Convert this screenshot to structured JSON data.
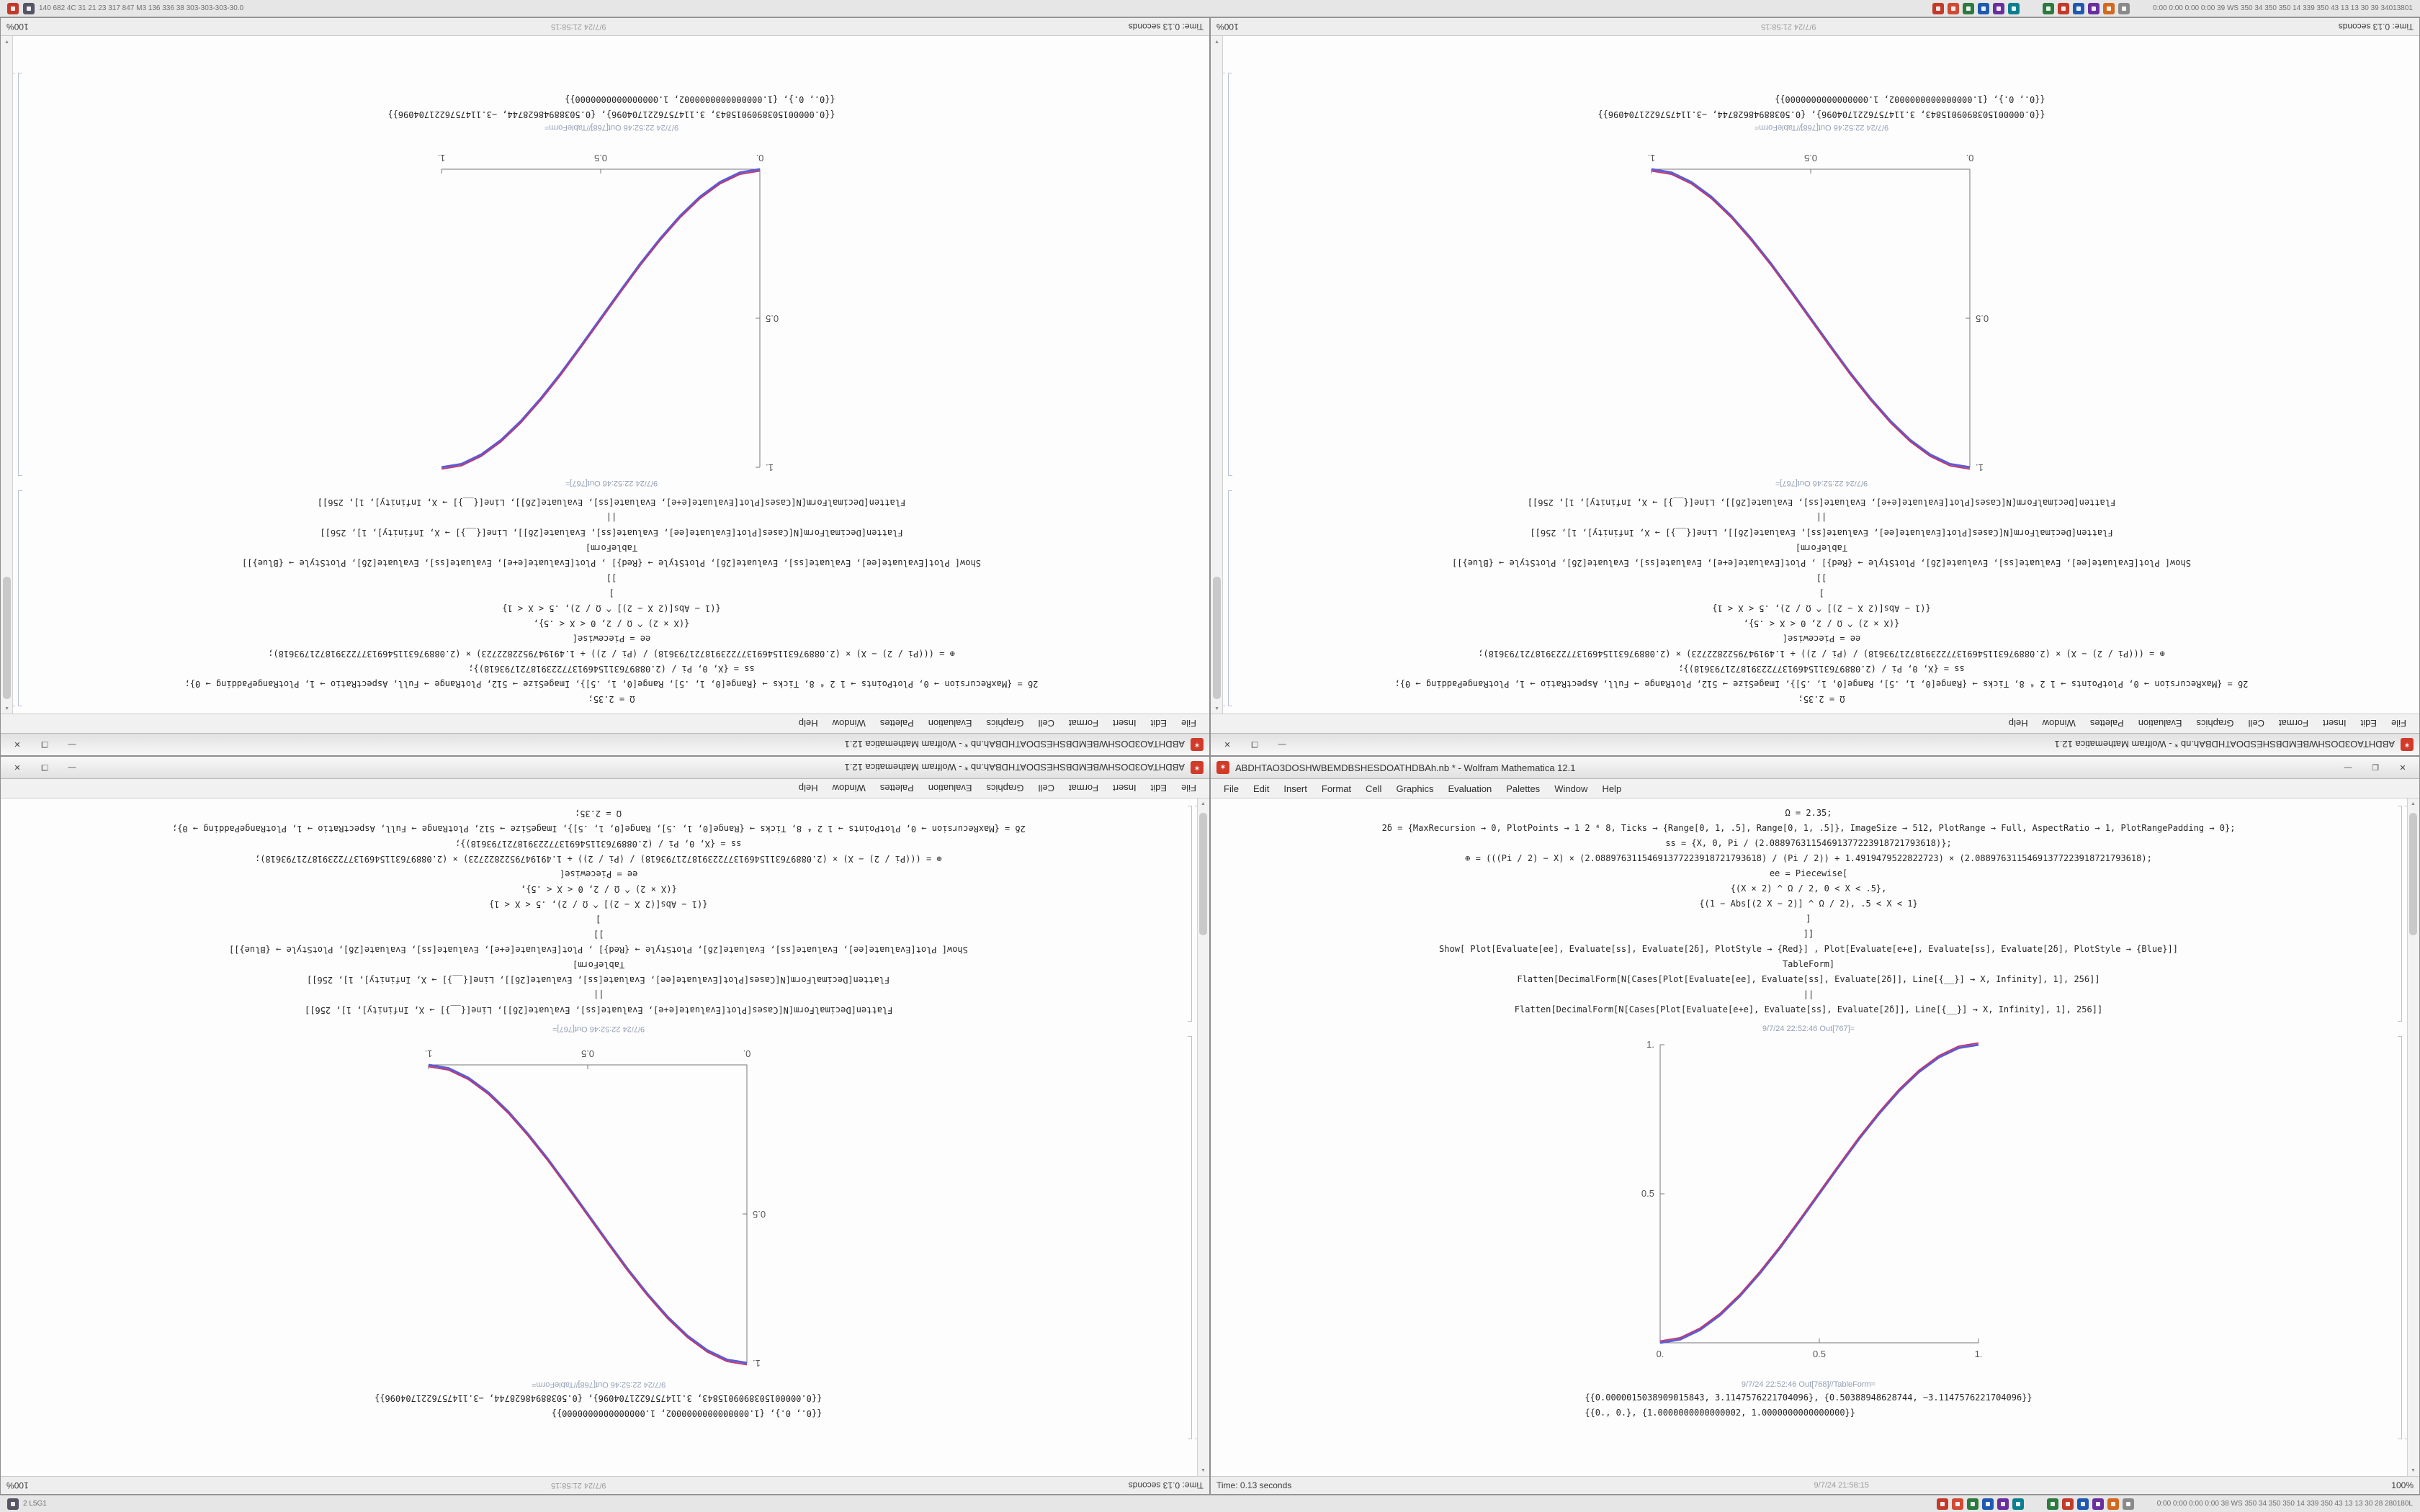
{
  "desktop": {
    "top_taskbar": {
      "left_icons": [
        {
          "name": "app-icon-red",
          "color": "#c23b2a"
        },
        {
          "name": "app-icon-dark",
          "color": "#555566"
        }
      ],
      "left_text": "140 682 4C 31 21 23 317 847 M3 136 336 38 303-303-303-30.0",
      "right_groups": [
        [
          "#c23b2a",
          "#d04a35",
          "#2c7a3f",
          "#2059b0",
          "#6a2f9e",
          "#0c7f8f"
        ],
        [
          "#2c7a3f",
          "#c23b2a",
          "#2059b0",
          "#6a2f9e",
          "#d2691e",
          "#8a8a8a"
        ]
      ],
      "right_text": "0:00 0:00 0:00 0:00 39 WS 350 34 350 350 14 339 350 43 13 13 30 39 34013801"
    },
    "bottom_taskbar": {
      "left_icons": [
        {
          "name": "app-icon-dark",
          "color": "#555566"
        }
      ],
      "left_text": "2 L5G1",
      "right_groups": [
        [
          "#c23b2a",
          "#d04a35",
          "#2c7a3f",
          "#2059b0",
          "#6a2f9e",
          "#0c7f8f"
        ],
        [
          "#2c7a3f",
          "#c23b2a",
          "#2059b0",
          "#6a2f9e",
          "#d2691e",
          "#8a8a8a"
        ]
      ],
      "right_text": "0:00 0:00 0:00 0:00 38 WS 350 34 350 350 14 339 350 43 13 13 30 28 280180L"
    }
  },
  "window_chrome": {
    "minimize_glyph": "—",
    "maximize_glyph": "❐",
    "close_glyph": "✕",
    "menu_items": [
      "File",
      "Edit",
      "Insert",
      "Format",
      "Cell",
      "Graphics",
      "Evaluation",
      "Palettes",
      "Window",
      "Help"
    ]
  },
  "notebook": {
    "input_lines": [
      "Ω = 2.35;",
      "2δ = {MaxRecursion → 0, PlotPoints → 1 2 ⁴ 8, Ticks → {Range[0, 1, .5], Range[0, 1, .5]}, ImageSize → 512, PlotRange → Full, AspectRatio → 1, PlotRangePadding → 0};",
      "ss = {X, 0, Pi / (2.08897631154691377223918721793618)};",
      "⊕ = (((Pi / 2) − X) × (2.08897631154691377223918721793618) / (Pi / 2)) + 1.4919479522822723) × (2.08897631154691377223918721793618);",
      "ee = Piecewise[",
      "{(X × 2) ^ Ω / 2, 0 < X < .5},",
      "{(1 − Abs[(2 X − 2)] ^ Ω / 2), .5 < X < 1}",
      "]",
      "]]",
      "Show[  Plot[Evaluate[ee], Evaluate[ss], Evaluate[2δ], PlotStyle → {Red}]  ,  Plot[Evaluate[e+e], Evaluate[ss], Evaluate[2δ], PlotStyle → {Blue}]]",
      "TableForm]",
      "Flatten[DecimalForm[N[Cases[Plot[Evaluate[ee], Evaluate[ss], Evaluate[2δ]], Line[{__}] → X, Infinity], 1], 256]]",
      "||",
      "Flatten[DecimalForm[N[Cases[Plot[Evaluate[e+e], Evaluate[ss], Evaluate[2δ]], Line[{__}] → X, Infinity], 1], 256]]"
    ],
    "out_plot_label": "9/7/24 22:52:46 Out[767]=",
    "out_table_label": "9/7/24 22:52:46 Out[768]//TableForm=",
    "result_lines": [
      "{{0.0000015038909015843, 3.1147576221704096}, {0.50388948628744, −3.1147576221704096}}",
      "{{0., 0.}, {1.0000000000000002, 1.0000000000000000}}"
    ],
    "status_left": "Time: 0.13 seconds",
    "status_center": "9/7/24 21:58:15",
    "status_right": "100%"
  },
  "windows": [
    {
      "id": "top-left",
      "orientation": "rotated-180",
      "title": "ABDHTAO3DOSHWBEMDBSHESDOATHDBAh.nb * - Wolfram Mathematica 12.1"
    },
    {
      "id": "top-right",
      "orientation": "rotated-180",
      "title": "ABDHTAO3DOSHWBEMDBSHESDOATHDBAh.nb * - Wolfram Mathematica 12.1"
    },
    {
      "id": "bottom-left",
      "orientation": "content-rotated",
      "title": "ABDHTAO3DOSHWBEMDBSHESDOATHDBAh.nb * - Wolfram Mathematica 12.1"
    },
    {
      "id": "bottom-right",
      "orientation": "normal",
      "title": "ABDHTAO3DOSHWBEMDBSHESDOATHDBAh.nb * - Wolfram Mathematica 12.1"
    }
  ],
  "chart_data": [
    {
      "window": "top-left",
      "type": "line",
      "title": "",
      "xlabel": "",
      "ylabel": "",
      "xlim": [
        0,
        1
      ],
      "ylim": [
        0,
        1
      ],
      "grid": false,
      "legend": "none",
      "xticks": [
        "0.",
        "0.5",
        "1."
      ],
      "yticks": [
        "0.5",
        "1."
      ],
      "series": [
        {
          "name": "red-curve",
          "color": "#c2356b"
        },
        {
          "name": "blue-curve",
          "color": "#5b5bd6"
        }
      ],
      "points": [
        [
          0,
          0
        ],
        [
          0.0625,
          0.011
        ],
        [
          0.125,
          0.043
        ],
        [
          0.1875,
          0.092
        ],
        [
          0.25,
          0.156
        ],
        [
          0.3125,
          0.232
        ],
        [
          0.375,
          0.316
        ],
        [
          0.4375,
          0.407
        ],
        [
          0.5,
          0.5
        ],
        [
          0.5625,
          0.593
        ],
        [
          0.625,
          0.684
        ],
        [
          0.6875,
          0.768
        ],
        [
          0.75,
          0.844
        ],
        [
          0.8125,
          0.908
        ],
        [
          0.875,
          0.957
        ],
        [
          0.9375,
          0.989
        ],
        [
          1,
          1
        ]
      ]
    },
    {
      "window": "top-right",
      "type": "line",
      "title": "",
      "xlabel": "",
      "ylabel": "",
      "xlim": [
        0,
        1
      ],
      "ylim": [
        0,
        1
      ],
      "grid": false,
      "legend": "none",
      "xticks": [
        "0.",
        "0.5",
        "1."
      ],
      "yticks": [
        "0.5",
        "1."
      ],
      "series": [
        {
          "name": "red-curve",
          "color": "#c2356b"
        },
        {
          "name": "blue-curve",
          "color": "#5b5bd6"
        }
      ],
      "points": [
        [
          0,
          1
        ],
        [
          0.0625,
          0.989
        ],
        [
          0.125,
          0.957
        ],
        [
          0.1875,
          0.908
        ],
        [
          0.25,
          0.844
        ],
        [
          0.3125,
          0.768
        ],
        [
          0.375,
          0.684
        ],
        [
          0.4375,
          0.593
        ],
        [
          0.5,
          0.5
        ],
        [
          0.5625,
          0.407
        ],
        [
          0.625,
          0.316
        ],
        [
          0.6875,
          0.232
        ],
        [
          0.75,
          0.156
        ],
        [
          0.8125,
          0.092
        ],
        [
          0.875,
          0.043
        ],
        [
          0.9375,
          0.011
        ],
        [
          1,
          0
        ]
      ]
    },
    {
      "window": "bottom-left",
      "type": "line",
      "title": "",
      "xlabel": "",
      "ylabel": "",
      "xlim": [
        0,
        1
      ],
      "ylim": [
        0,
        1
      ],
      "grid": false,
      "legend": "none",
      "xticks": [
        "0.",
        "0.5",
        "1."
      ],
      "yticks": [
        "0.5",
        "1."
      ],
      "series": [
        {
          "name": "red-curve",
          "color": "#c2356b"
        },
        {
          "name": "blue-curve",
          "color": "#5b5bd6"
        }
      ],
      "points": [
        [
          0,
          1
        ],
        [
          0.0625,
          0.989
        ],
        [
          0.125,
          0.957
        ],
        [
          0.1875,
          0.908
        ],
        [
          0.25,
          0.844
        ],
        [
          0.3125,
          0.768
        ],
        [
          0.375,
          0.684
        ],
        [
          0.4375,
          0.593
        ],
        [
          0.5,
          0.5
        ],
        [
          0.5625,
          0.407
        ],
        [
          0.625,
          0.316
        ],
        [
          0.6875,
          0.232
        ],
        [
          0.75,
          0.156
        ],
        [
          0.8125,
          0.092
        ],
        [
          0.875,
          0.043
        ],
        [
          0.9375,
          0.011
        ],
        [
          1,
          0
        ]
      ]
    },
    {
      "window": "bottom-right",
      "type": "line",
      "title": "",
      "xlabel": "",
      "ylabel": "",
      "xlim": [
        0,
        1
      ],
      "ylim": [
        0,
        1
      ],
      "grid": false,
      "legend": "none",
      "xticks": [
        "0.",
        "0.5",
        "1."
      ],
      "yticks": [
        "0.5",
        "1."
      ],
      "series": [
        {
          "name": "red-curve",
          "color": "#c2356b"
        },
        {
          "name": "blue-curve",
          "color": "#5b5bd6"
        }
      ],
      "points": [
        [
          0,
          0
        ],
        [
          0.0625,
          0.011
        ],
        [
          0.125,
          0.043
        ],
        [
          0.1875,
          0.092
        ],
        [
          0.25,
          0.156
        ],
        [
          0.3125,
          0.232
        ],
        [
          0.375,
          0.316
        ],
        [
          0.4375,
          0.407
        ],
        [
          0.5,
          0.5
        ],
        [
          0.5625,
          0.593
        ],
        [
          0.625,
          0.684
        ],
        [
          0.6875,
          0.768
        ],
        [
          0.75,
          0.844
        ],
        [
          0.8125,
          0.908
        ],
        [
          0.875,
          0.957
        ],
        [
          0.9375,
          0.989
        ],
        [
          1,
          1
        ]
      ]
    }
  ]
}
